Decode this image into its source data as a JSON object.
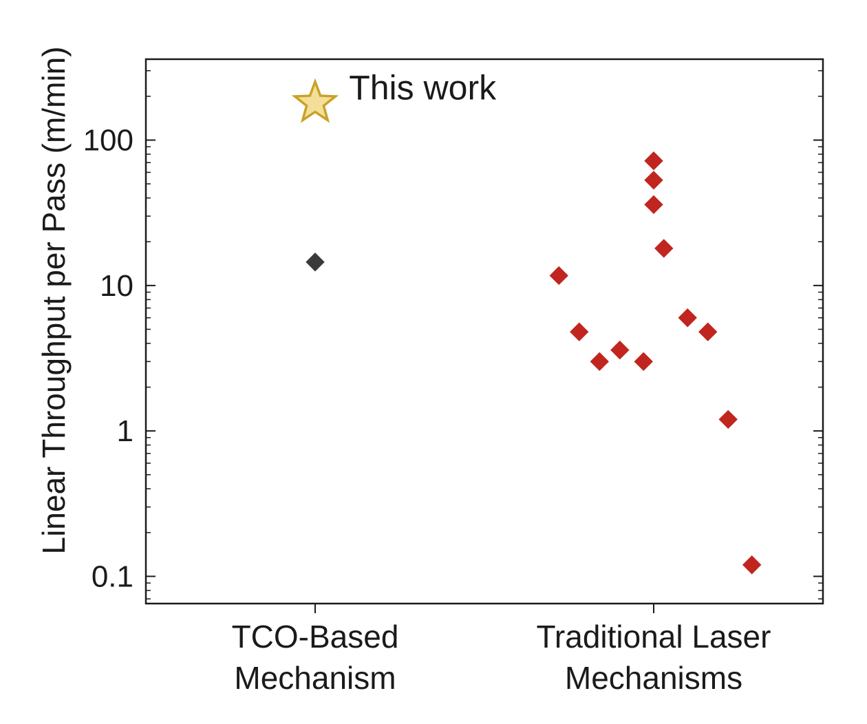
{
  "chart_data": {
    "type": "scatter",
    "title": "",
    "xlabel": "",
    "ylabel": "Linear Throughput per Pass (m/min)",
    "yscale": "log",
    "ylim": [
      0.065,
      360
    ],
    "grid": false,
    "categories": [
      {
        "line1": "TCO-Based",
        "line2": "Mechanism"
      },
      {
        "line1": "Traditional Laser",
        "line2": "Mechanisms"
      }
    ],
    "y_ticks": [
      {
        "value": 0.1,
        "label": "0.1"
      },
      {
        "value": 1,
        "label": "1"
      },
      {
        "value": 10,
        "label": "10"
      },
      {
        "value": 100,
        "label": "100"
      }
    ],
    "series": [
      {
        "marker": "star",
        "color": "#c9a227",
        "fill": "#f3df9a",
        "points": [
          {
            "x": 0,
            "y": 180
          }
        ]
      },
      {
        "marker": "diamond",
        "color": "#3a3a3a",
        "points": [
          {
            "x": 0,
            "y": 14.5
          }
        ]
      },
      {
        "marker": "diamond",
        "color": "#c0261f",
        "points": [
          {
            "x": 0.72,
            "y": 11.7
          },
          {
            "x": 0.78,
            "y": 4.8
          },
          {
            "x": 0.84,
            "y": 3.0
          },
          {
            "x": 0.9,
            "y": 3.6
          },
          {
            "x": 0.97,
            "y": 3.0
          },
          {
            "x": 1.0,
            "y": 72
          },
          {
            "x": 1.0,
            "y": 53
          },
          {
            "x": 1.0,
            "y": 36
          },
          {
            "x": 1.03,
            "y": 18
          },
          {
            "x": 1.1,
            "y": 6.0
          },
          {
            "x": 1.16,
            "y": 4.8
          },
          {
            "x": 1.22,
            "y": 1.2
          },
          {
            "x": 1.29,
            "y": 0.12
          }
        ]
      }
    ],
    "annotations": [
      {
        "text": "This work",
        "x": 0.1,
        "y": 180
      }
    ]
  }
}
